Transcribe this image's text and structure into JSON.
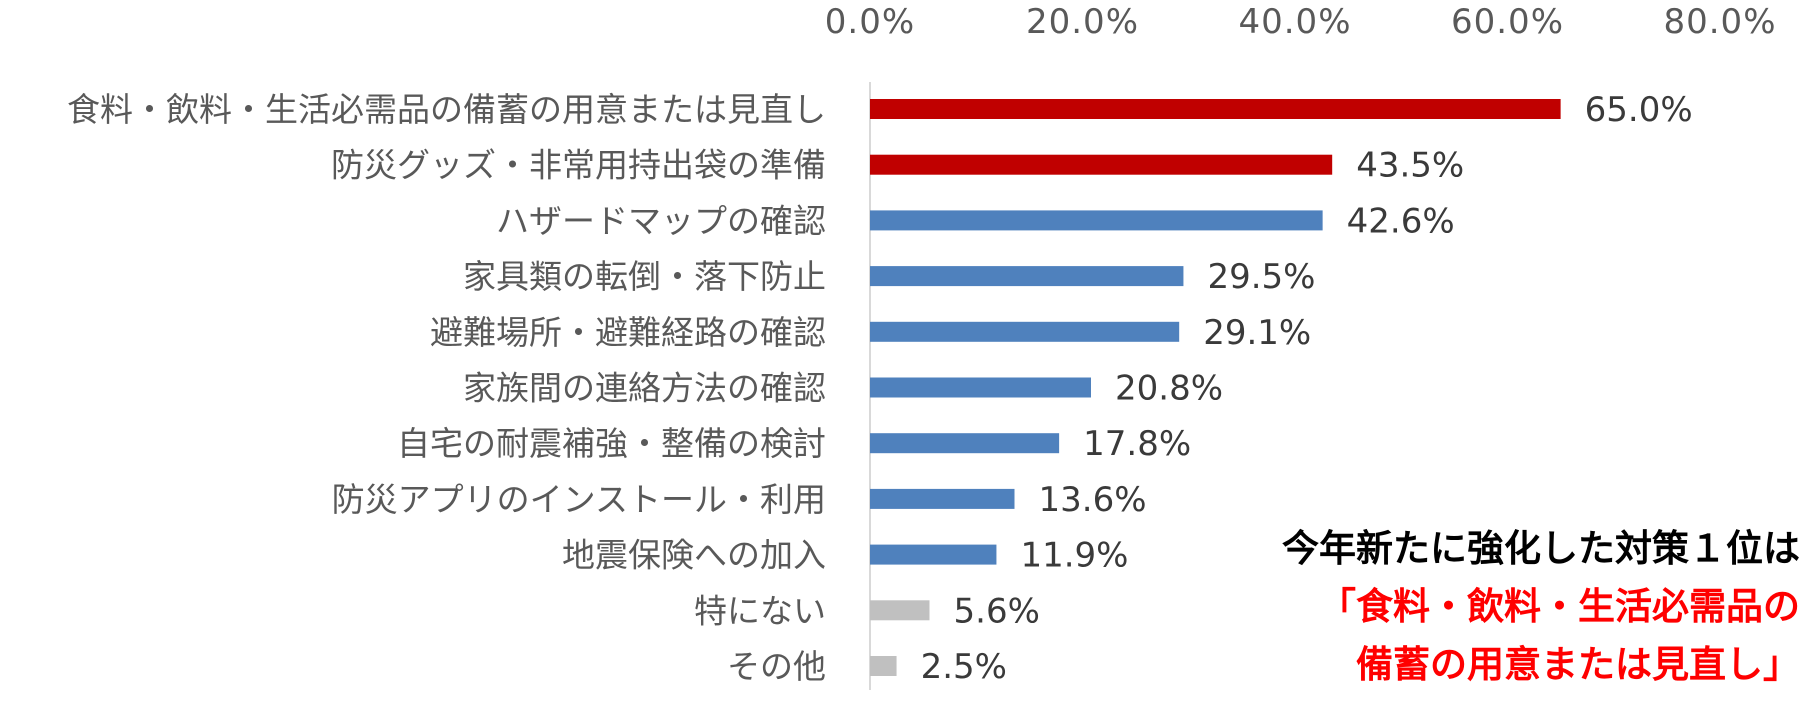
{
  "chart_data": {
    "type": "bar",
    "orientation": "horizontal",
    "title": "",
    "xlabel": "",
    "ylabel": "",
    "xlim": [
      0,
      80
    ],
    "x_ticks": [
      "0.0%",
      "20.0%",
      "40.0%",
      "60.0%",
      "80.0%"
    ],
    "x_axis_position": "top",
    "grid": false,
    "legend": "none",
    "categories": [
      "食料・飲料・生活必需品の備蓄の用意または見直し",
      "防災グッズ・非常用持出袋の準備",
      "ハザードマップの確認",
      "家具類の転倒・落下防止",
      "避難場所・避難経路の確認",
      "家族間の連絡方法の確認",
      "自宅の耐震補強・整備の検討",
      "防災アプリのインストール・利用",
      "地震保険への加入",
      "特にない",
      "その他"
    ],
    "values": [
      65.0,
      43.5,
      42.6,
      29.5,
      29.1,
      20.8,
      17.8,
      13.6,
      11.9,
      5.6,
      2.5
    ],
    "value_labels": [
      "65.0%",
      "43.5%",
      "42.6%",
      "29.5%",
      "29.1%",
      "20.8%",
      "17.8%",
      "13.6%",
      "11.9%",
      "5.6%",
      "2.5%"
    ],
    "bar_colors": [
      "#c00000",
      "#c00000",
      "#4f81bd",
      "#4f81bd",
      "#4f81bd",
      "#4f81bd",
      "#4f81bd",
      "#4f81bd",
      "#4f81bd",
      "#c0c0c0",
      "#c0c0c0"
    ]
  },
  "callout": {
    "line1": "今年新たに強化した対策１位は",
    "line2": "「食料・飲料・生活必需品の",
    "line3": "備蓄の用意または見直し」"
  }
}
